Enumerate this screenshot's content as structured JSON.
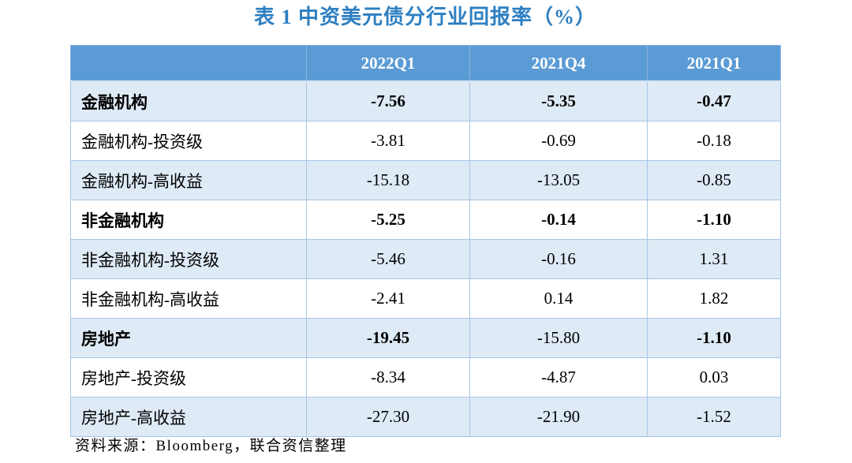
{
  "title": "表 1 中资美元债分行业回报率（%）",
  "colors": {
    "header_bg": "#5B9BD5",
    "stripe_bg": "#DEEAF6",
    "title_color": "#2E7FC1",
    "header_text": "#FFFFFF",
    "border": "#A6C6E7"
  },
  "table": {
    "corner_label": "",
    "columns": [
      "2022Q1",
      "2021Q4",
      "2021Q1"
    ],
    "rows": [
      {
        "label": "金融机构",
        "bold_label": true,
        "values": [
          "-7.56",
          "-5.35",
          "-0.47"
        ],
        "bold_values": [
          true,
          true,
          true
        ]
      },
      {
        "label": "金融机构-投资级",
        "bold_label": false,
        "values": [
          "-3.81",
          "-0.69",
          "-0.18"
        ],
        "bold_values": [
          false,
          false,
          false
        ]
      },
      {
        "label": "金融机构-高收益",
        "bold_label": false,
        "values": [
          "-15.18",
          "-13.05",
          "-0.85"
        ],
        "bold_values": [
          false,
          false,
          false
        ]
      },
      {
        "label": "非金融机构",
        "bold_label": true,
        "values": [
          "-5.25",
          "-0.14",
          "-1.10"
        ],
        "bold_values": [
          true,
          true,
          true
        ]
      },
      {
        "label": "非金融机构-投资级",
        "bold_label": false,
        "values": [
          "-5.46",
          "-0.16",
          "1.31"
        ],
        "bold_values": [
          false,
          false,
          false
        ]
      },
      {
        "label": "非金融机构-高收益",
        "bold_label": false,
        "values": [
          "-2.41",
          "0.14",
          "1.82"
        ],
        "bold_values": [
          false,
          false,
          false
        ]
      },
      {
        "label": "房地产",
        "bold_label": true,
        "values": [
          "-19.45",
          "-15.80",
          "-1.10"
        ],
        "bold_values": [
          true,
          false,
          true
        ]
      },
      {
        "label": "房地产-投资级",
        "bold_label": false,
        "values": [
          "-8.34",
          "-4.87",
          "0.03"
        ],
        "bold_values": [
          false,
          false,
          false
        ]
      },
      {
        "label": "房地产-高收益",
        "bold_label": false,
        "values": [
          "-27.30",
          "-21.90",
          "-1.52"
        ],
        "bold_values": [
          false,
          false,
          false
        ]
      }
    ]
  },
  "footer": "资料来源：Bloomberg，联合资信整理"
}
